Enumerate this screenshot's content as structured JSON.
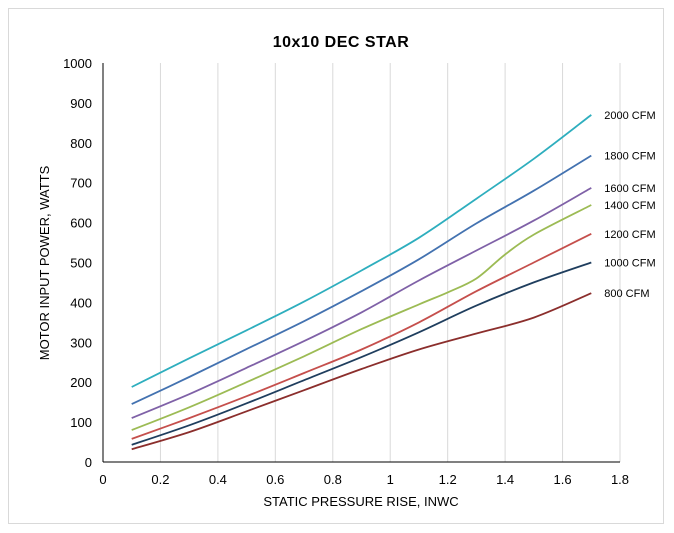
{
  "chart_data": {
    "type": "line",
    "title": "10x10 DEC STAR",
    "xlabel": "STATIC PRESSURE RISE, INWC",
    "ylabel": "MOTOR INPUT POWER,  WATTS",
    "xlim": [
      0,
      1.8
    ],
    "ylim": [
      0,
      1000
    ],
    "xticks": [
      "0",
      "0.2",
      "0.4",
      "0.6",
      "0.8",
      "1",
      "1.2",
      "1.4",
      "1.6",
      "1.8"
    ],
    "yticks": [
      "0",
      "100",
      "200",
      "300",
      "400",
      "500",
      "600",
      "700",
      "800",
      "900",
      "1000"
    ],
    "grid": "vertical",
    "legend": "labels at right end of each series",
    "series": [
      {
        "name": "2000 CFM",
        "color": "#2eaebe",
        "points": [
          [
            0.1,
            188
          ],
          [
            0.3,
            260
          ],
          [
            0.5,
            330
          ],
          [
            0.7,
            402
          ],
          [
            0.9,
            480
          ],
          [
            1.1,
            562
          ],
          [
            1.3,
            660
          ],
          [
            1.5,
            760
          ],
          [
            1.7,
            870
          ]
        ]
      },
      {
        "name": "1800 CFM",
        "color": "#4372b0",
        "points": [
          [
            0.1,
            145
          ],
          [
            0.3,
            213
          ],
          [
            0.5,
            283
          ],
          [
            0.7,
            353
          ],
          [
            0.9,
            428
          ],
          [
            1.1,
            508
          ],
          [
            1.3,
            598
          ],
          [
            1.5,
            680
          ],
          [
            1.7,
            768
          ]
        ]
      },
      {
        "name": "1600 CFM",
        "color": "#7f61a7",
        "points": [
          [
            0.1,
            110
          ],
          [
            0.3,
            170
          ],
          [
            0.5,
            236
          ],
          [
            0.7,
            303
          ],
          [
            0.9,
            375
          ],
          [
            1.1,
            455
          ],
          [
            1.3,
            530
          ],
          [
            1.5,
            605
          ],
          [
            1.7,
            687
          ]
        ]
      },
      {
        "name": "1400 CFM",
        "color": "#9cbb54",
        "points": [
          [
            0.1,
            80
          ],
          [
            0.3,
            137
          ],
          [
            0.5,
            200
          ],
          [
            0.7,
            265
          ],
          [
            0.9,
            333
          ],
          [
            1.1,
            395
          ],
          [
            1.2,
            425
          ],
          [
            1.3,
            460
          ],
          [
            1.4,
            520
          ],
          [
            1.5,
            570
          ],
          [
            1.7,
            644
          ]
        ]
      },
      {
        "name": "1200 CFM",
        "color": "#c54f4c",
        "points": [
          [
            0.1,
            58
          ],
          [
            0.3,
            110
          ],
          [
            0.5,
            165
          ],
          [
            0.7,
            223
          ],
          [
            0.9,
            282
          ],
          [
            1.1,
            350
          ],
          [
            1.3,
            428
          ],
          [
            1.5,
            500
          ],
          [
            1.7,
            572
          ]
        ]
      },
      {
        "name": "1000 CFM",
        "color": "#1f3e5e",
        "points": [
          [
            0.1,
            43
          ],
          [
            0.3,
            92
          ],
          [
            0.5,
            147
          ],
          [
            0.7,
            205
          ],
          [
            0.9,
            263
          ],
          [
            1.1,
            325
          ],
          [
            1.3,
            392
          ],
          [
            1.5,
            450
          ],
          [
            1.7,
            500
          ]
        ]
      },
      {
        "name": "800 CFM",
        "color": "#8b2e2c",
        "points": [
          [
            0.1,
            32
          ],
          [
            0.3,
            75
          ],
          [
            0.5,
            127
          ],
          [
            0.7,
            180
          ],
          [
            0.9,
            233
          ],
          [
            1.1,
            282
          ],
          [
            1.3,
            322
          ],
          [
            1.5,
            362
          ],
          [
            1.7,
            423
          ]
        ]
      }
    ]
  }
}
